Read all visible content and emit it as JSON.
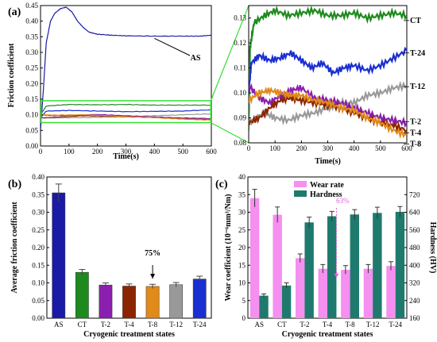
{
  "chart_data": [
    {
      "panel": "(a)",
      "type": "line",
      "xlabel": "Time(s)",
      "ylabel": "Friction coefficient",
      "xlim": [
        0,
        600
      ],
      "ylim": [
        0.0,
        0.45
      ],
      "xticks": [
        "0",
        "100",
        "200",
        "300",
        "400",
        "500",
        "600"
      ],
      "yticks": [
        "0.00",
        "0.05",
        "0.10",
        "0.15",
        "0.20",
        "0.25",
        "0.30",
        "0.35",
        "0.40",
        "0.45"
      ],
      "annotation": "AS",
      "series": [
        {
          "name": "AS",
          "color": "#1a1aa6",
          "points": [
            [
              0,
              0.05
            ],
            [
              10,
              0.18
            ],
            [
              20,
              0.33
            ],
            [
              35,
              0.4
            ],
            [
              50,
              0.425
            ],
            [
              70,
              0.44
            ],
            [
              90,
              0.445
            ],
            [
              110,
              0.43
            ],
            [
              130,
              0.4
            ],
            [
              150,
              0.38
            ],
            [
              170,
              0.365
            ],
            [
              200,
              0.358
            ],
            [
              250,
              0.355
            ],
            [
              300,
              0.353
            ],
            [
              400,
              0.352
            ],
            [
              500,
              0.352
            ],
            [
              560,
              0.352
            ],
            [
              600,
              0.355
            ]
          ]
        },
        {
          "name": "CT",
          "color": "#1e8a1e",
          "points": [
            [
              0,
              0.1
            ],
            [
              20,
              0.128
            ],
            [
              100,
              0.133
            ],
            [
              200,
              0.132
            ],
            [
              300,
              0.133
            ],
            [
              400,
              0.131
            ],
            [
              500,
              0.131
            ],
            [
              600,
              0.131
            ]
          ]
        },
        {
          "name": "T-24",
          "color": "#1a2fd0",
          "points": [
            [
              0,
              0.09
            ],
            [
              20,
              0.112
            ],
            [
              100,
              0.114
            ],
            [
              200,
              0.112
            ],
            [
              300,
              0.11
            ],
            [
              400,
              0.111
            ],
            [
              500,
              0.112
            ],
            [
              600,
              0.116
            ]
          ]
        },
        {
          "name": "T-12",
          "color": "#999999",
          "points": [
            [
              0,
              0.09
            ],
            [
              50,
              0.09
            ],
            [
              150,
              0.091
            ],
            [
              300,
              0.094
            ],
            [
              400,
              0.097
            ],
            [
              500,
              0.1
            ],
            [
              600,
              0.103
            ]
          ]
        },
        {
          "name": "T-2",
          "color": "#8a1fb0",
          "points": [
            [
              0,
              0.1
            ],
            [
              50,
              0.097
            ],
            [
              200,
              0.101
            ],
            [
              300,
              0.097
            ],
            [
              400,
              0.093
            ],
            [
              500,
              0.09
            ],
            [
              600,
              0.088
            ]
          ]
        },
        {
          "name": "T-4",
          "color": "#8b2500",
          "points": [
            [
              0,
              0.09
            ],
            [
              50,
              0.092
            ],
            [
              150,
              0.097
            ],
            [
              250,
              0.095
            ],
            [
              400,
              0.091
            ],
            [
              500,
              0.087
            ],
            [
              600,
              0.085
            ]
          ]
        },
        {
          "name": "T-8",
          "color": "#e08a1a",
          "points": [
            [
              0,
              0.1
            ],
            [
              50,
              0.099
            ],
            [
              150,
              0.1
            ],
            [
              250,
              0.096
            ],
            [
              400,
              0.091
            ],
            [
              500,
              0.086
            ],
            [
              600,
              0.083
            ]
          ]
        }
      ]
    },
    {
      "panel": "(a-inset)",
      "type": "line",
      "xlabel": "Time(s)",
      "xlim": [
        0,
        600
      ],
      "ylim": [
        0.08,
        0.135
      ],
      "xticks": [
        "0",
        "100",
        "200",
        "300",
        "400",
        "500",
        "600"
      ],
      "yticks": [
        "0.08",
        "0.09",
        "0.10",
        "0.11",
        "0.12",
        "0.13"
      ],
      "labels": [
        "CT",
        "T-24",
        "T-12",
        "T-2",
        "T-4",
        "T-8"
      ],
      "series": [
        {
          "name": "CT",
          "color": "#1e8a1e",
          "points": [
            [
              0,
              0.085
            ],
            [
              5,
              0.118
            ],
            [
              20,
              0.128
            ],
            [
              60,
              0.131
            ],
            [
              100,
              0.133
            ],
            [
              150,
              0.131
            ],
            [
              200,
              0.132
            ],
            [
              250,
              0.133
            ],
            [
              300,
              0.131
            ],
            [
              350,
              0.131
            ],
            [
              400,
              0.132
            ],
            [
              450,
              0.13
            ],
            [
              500,
              0.131
            ],
            [
              550,
              0.132
            ],
            [
              600,
              0.131
            ]
          ]
        },
        {
          "name": "T-24",
          "color": "#1a2fd0",
          "points": [
            [
              0,
              0.1
            ],
            [
              10,
              0.112
            ],
            [
              40,
              0.115
            ],
            [
              80,
              0.113
            ],
            [
              120,
              0.114
            ],
            [
              160,
              0.116
            ],
            [
              200,
              0.113
            ],
            [
              240,
              0.11
            ],
            [
              280,
              0.112
            ],
            [
              320,
              0.108
            ],
            [
              360,
              0.11
            ],
            [
              400,
              0.111
            ],
            [
              450,
              0.109
            ],
            [
              500,
              0.111
            ],
            [
              550,
              0.114
            ],
            [
              600,
              0.117
            ]
          ]
        },
        {
          "name": "T-12",
          "color": "#999999",
          "points": [
            [
              0,
              0.088
            ],
            [
              30,
              0.09
            ],
            [
              60,
              0.092
            ],
            [
              100,
              0.09
            ],
            [
              150,
              0.089
            ],
            [
              200,
              0.091
            ],
            [
              250,
              0.092
            ],
            [
              300,
              0.094
            ],
            [
              350,
              0.096
            ],
            [
              400,
              0.096
            ],
            [
              450,
              0.099
            ],
            [
              500,
              0.1
            ],
            [
              550,
              0.102
            ],
            [
              600,
              0.103
            ]
          ]
        },
        {
          "name": "T-2",
          "color": "#8a1fb0",
          "points": [
            [
              0,
              0.103
            ],
            [
              40,
              0.098
            ],
            [
              80,
              0.096
            ],
            [
              120,
              0.099
            ],
            [
              160,
              0.101
            ],
            [
              200,
              0.102
            ],
            [
              250,
              0.098
            ],
            [
              300,
              0.097
            ],
            [
              350,
              0.096
            ],
            [
              400,
              0.094
            ],
            [
              450,
              0.092
            ],
            [
              500,
              0.09
            ],
            [
              550,
              0.089
            ],
            [
              600,
              0.088
            ]
          ]
        },
        {
          "name": "T-4",
          "color": "#8b2500",
          "points": [
            [
              0,
              0.088
            ],
            [
              40,
              0.09
            ],
            [
              80,
              0.094
            ],
            [
              120,
              0.097
            ],
            [
              160,
              0.098
            ],
            [
              200,
              0.097
            ],
            [
              250,
              0.096
            ],
            [
              300,
              0.095
            ],
            [
              350,
              0.094
            ],
            [
              400,
              0.092
            ],
            [
              450,
              0.09
            ],
            [
              500,
              0.088
            ],
            [
              550,
              0.087
            ],
            [
              600,
              0.085
            ]
          ]
        },
        {
          "name": "T-8",
          "color": "#e08a1a",
          "points": [
            [
              0,
              0.097
            ],
            [
              40,
              0.1
            ],
            [
              80,
              0.101
            ],
            [
              120,
              0.1
            ],
            [
              160,
              0.099
            ],
            [
              200,
              0.099
            ],
            [
              250,
              0.097
            ],
            [
              300,
              0.096
            ],
            [
              350,
              0.094
            ],
            [
              400,
              0.093
            ],
            [
              450,
              0.09
            ],
            [
              500,
              0.088
            ],
            [
              550,
              0.085
            ],
            [
              600,
              0.083
            ]
          ]
        }
      ]
    },
    {
      "panel": "(b)",
      "type": "bar",
      "xlabel": "Cryogenic treatment states",
      "ylabel": "Average friction coefficient",
      "ylim": [
        0.0,
        0.4
      ],
      "yticks": [
        "0.00",
        "0.05",
        "0.10",
        "0.15",
        "0.20",
        "0.25",
        "0.30",
        "0.35",
        "0.40"
      ],
      "categories": [
        "AS",
        "CT",
        "T-2",
        "T-4",
        "T-8",
        "T-12",
        "T-24"
      ],
      "values": [
        0.355,
        0.13,
        0.094,
        0.091,
        0.09,
        0.095,
        0.111
      ],
      "errors": [
        0.025,
        0.008,
        0.006,
        0.006,
        0.006,
        0.006,
        0.008
      ],
      "colors": [
        "#1a1aa6",
        "#1e8a1e",
        "#8a1fb0",
        "#8b2500",
        "#e08a1a",
        "#999999",
        "#1a2fd0"
      ],
      "annotation": "75%"
    },
    {
      "panel": "(c)",
      "type": "bar",
      "xlabel": "Cryogenic treatment states",
      "ylabel": "Wear coefficient (10⁻⁶mm³/Nm)",
      "ylabel_right": "Hardness (HV)",
      "ylim": [
        0,
        40
      ],
      "ylim_right": [
        160,
        800
      ],
      "yticks": [
        "0",
        "5",
        "10",
        "15",
        "20",
        "25",
        "30",
        "35",
        "40"
      ],
      "yticks_right": [
        "160",
        "240",
        "320",
        "400",
        "480",
        "560",
        "640",
        "720"
      ],
      "categories": [
        "AS",
        "CT",
        "T-2",
        "T-4",
        "T-8",
        "T-12",
        "T-24"
      ],
      "legend": [
        "Wear rate",
        "Hardness"
      ],
      "legend_position": "top-left",
      "annotation": "63%",
      "series": [
        {
          "name": "Wear rate",
          "color": "#f58ff0",
          "axis": "left",
          "values": [
            34.0,
            29.3,
            17.0,
            14.0,
            13.7,
            14.0,
            14.8
          ],
          "errors": [
            2.5,
            2.2,
            1.2,
            1.2,
            1.2,
            1.2,
            1.2
          ]
        },
        {
          "name": "Hardness",
          "color": "#1f7a6e",
          "axis": "right",
          "values": [
            262,
            308,
            594,
            622,
            630,
            637,
            642
          ],
          "errors": [
            8,
            12,
            24,
            22,
            22,
            26,
            24
          ]
        }
      ]
    }
  ]
}
